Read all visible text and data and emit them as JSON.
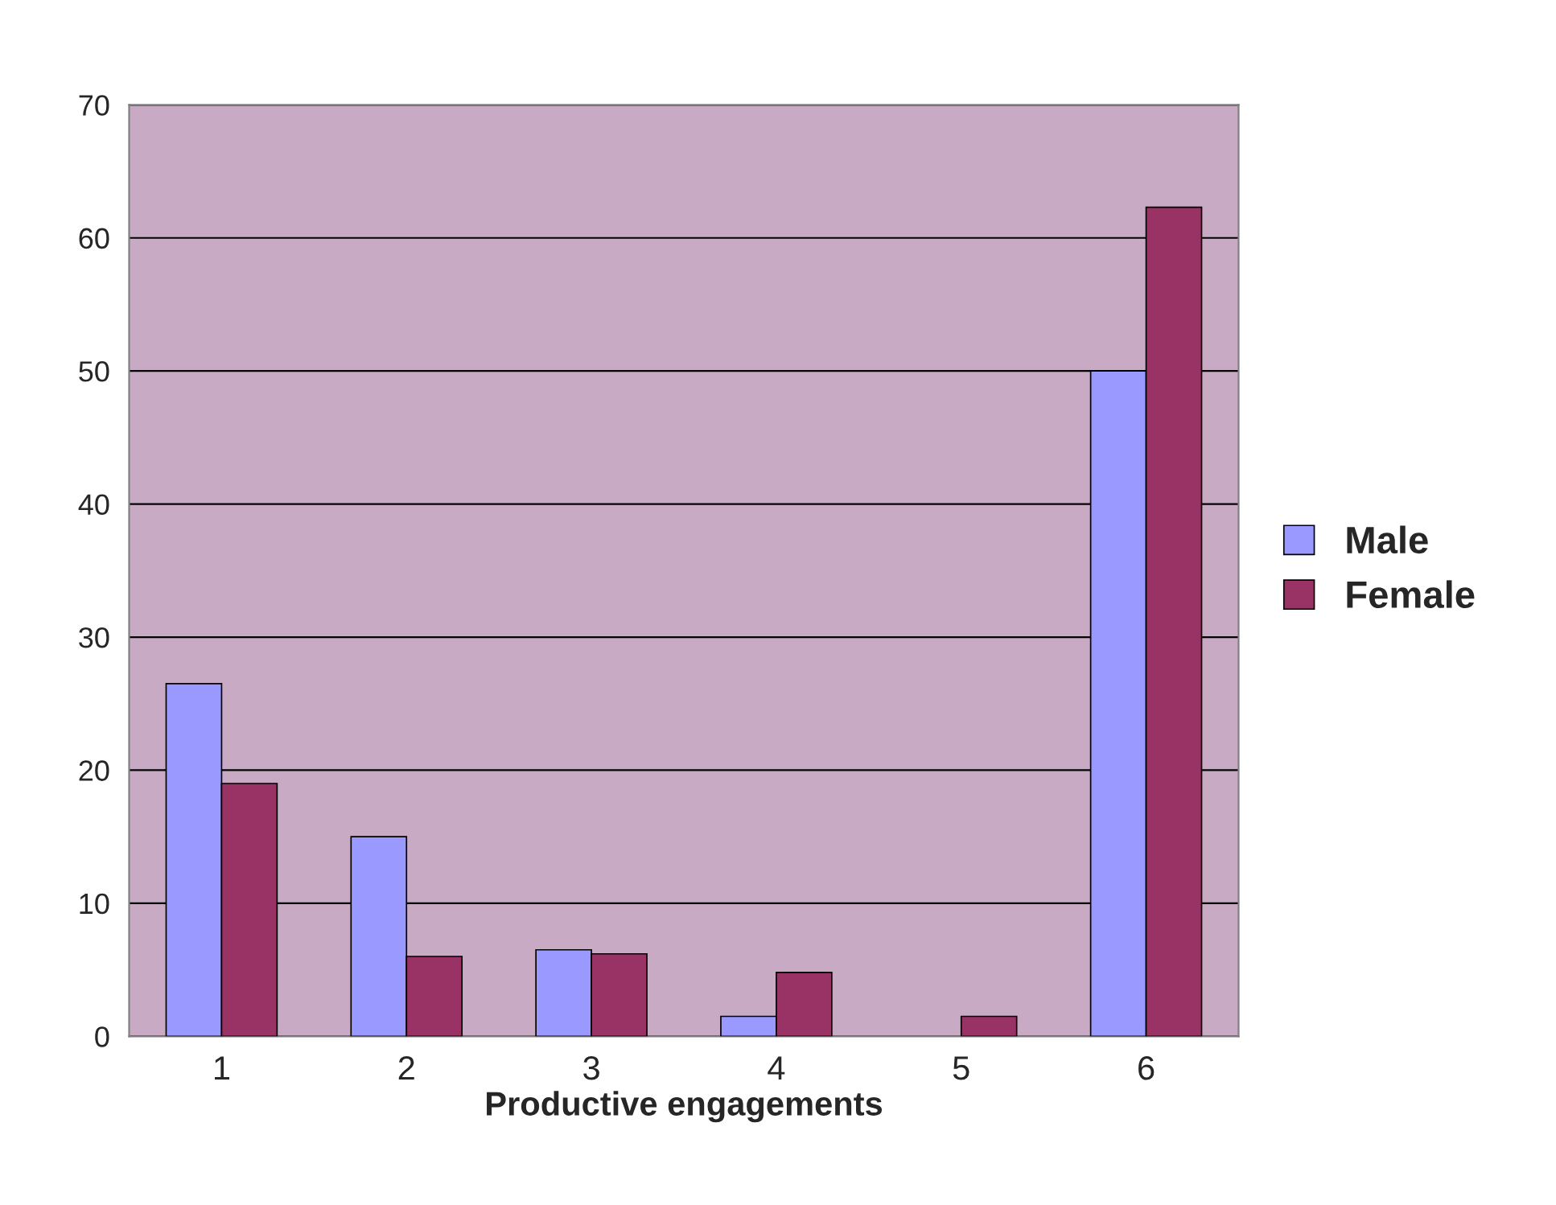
{
  "chart_data": {
    "type": "bar",
    "xlabel": "Productive engagements",
    "categories": [
      "1",
      "2",
      "3",
      "4",
      "5",
      "6"
    ],
    "series": [
      {
        "name": "Male",
        "color": "#9999ff",
        "values": [
          26.5,
          15,
          6.5,
          1.5,
          null,
          50
        ]
      },
      {
        "name": "Female",
        "color": "#993366",
        "values": [
          19,
          6,
          6.2,
          4.8,
          1.5,
          62.3
        ]
      }
    ],
    "ylim": [
      0,
      70
    ],
    "yticks": [
      0,
      10,
      20,
      30,
      40,
      50,
      60,
      70
    ],
    "grid": "y",
    "legend": "right"
  }
}
